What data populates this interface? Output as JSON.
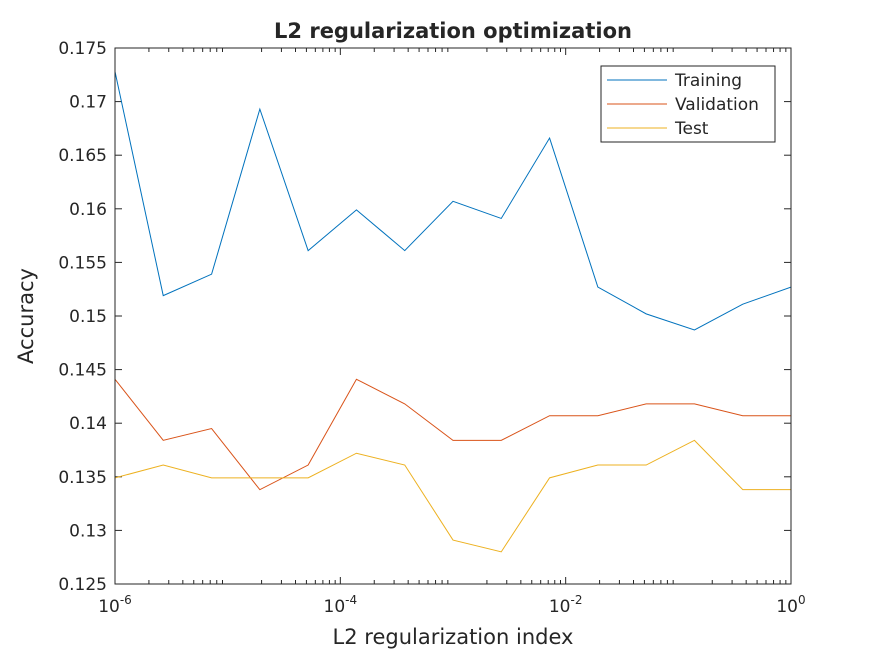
{
  "chart_data": {
    "type": "line",
    "title": "L2 regularization optimization",
    "xlabel": "L2 regularization index",
    "ylabel": "Accuracy",
    "x_scale": "log",
    "xlim": [
      1e-06,
      1
    ],
    "ylim": [
      0.125,
      0.175
    ],
    "x_ticks": [
      {
        "value": 1e-06,
        "base": "10",
        "exp": "-6"
      },
      {
        "value": 0.0001,
        "base": "10",
        "exp": "-4"
      },
      {
        "value": 0.01,
        "base": "10",
        "exp": "-2"
      },
      {
        "value": 1,
        "base": "10",
        "exp": "0"
      }
    ],
    "y_ticks": [
      {
        "value": 0.125,
        "label": "0.125"
      },
      {
        "value": 0.13,
        "label": "0.13"
      },
      {
        "value": 0.135,
        "label": "0.135"
      },
      {
        "value": 0.14,
        "label": "0.14"
      },
      {
        "value": 0.145,
        "label": "0.145"
      },
      {
        "value": 0.15,
        "label": "0.15"
      },
      {
        "value": 0.155,
        "label": "0.155"
      },
      {
        "value": 0.16,
        "label": "0.16"
      },
      {
        "value": 0.165,
        "label": "0.165"
      },
      {
        "value": 0.17,
        "label": "0.17"
      },
      {
        "value": 0.175,
        "label": "0.175"
      }
    ],
    "grid": false,
    "legend_position": "top-right",
    "x": [
      1e-06,
      2.68e-06,
      7.2e-06,
      1.93e-05,
      5.18e-05,
      0.000139,
      0.000373,
      0.001,
      0.00268,
      0.0072,
      0.0193,
      0.0518,
      0.139,
      0.373,
      1
    ],
    "series": [
      {
        "name": "Training",
        "color": "#0072bd",
        "values": [
          0.1728,
          0.1519,
          0.1539,
          0.1693,
          0.1561,
          0.1599,
          0.1561,
          0.1607,
          0.1591,
          0.1666,
          0.1527,
          0.1502,
          0.1487,
          0.1511,
          0.1527
        ]
      },
      {
        "name": "Validation",
        "color": "#d95319",
        "values": [
          0.1441,
          0.1384,
          0.1395,
          0.1338,
          0.1361,
          0.1441,
          0.1418,
          0.1384,
          0.1384,
          0.1407,
          0.1407,
          0.1418,
          0.1418,
          0.1407,
          0.1407
        ]
      },
      {
        "name": "Test",
        "color": "#edb120",
        "values": [
          0.1349,
          0.1361,
          0.1349,
          0.1349,
          0.1349,
          0.1372,
          0.1361,
          0.1291,
          0.128,
          0.1349,
          0.1361,
          0.1361,
          0.1384,
          0.1338,
          0.1338
        ]
      }
    ]
  }
}
